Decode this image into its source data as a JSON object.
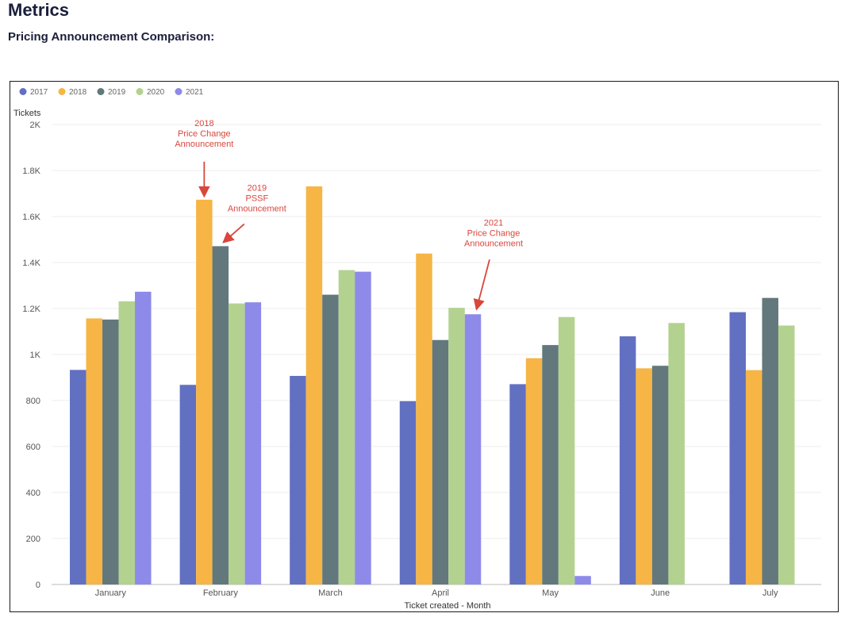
{
  "page": {
    "title": "Metrics",
    "subtitle": "Pricing Announcement Comparison:"
  },
  "chart_data": {
    "type": "bar",
    "categories": [
      "January",
      "February",
      "March",
      "April",
      "May",
      "June",
      "July"
    ],
    "series": [
      {
        "name": "2017",
        "color": "#6270c2",
        "values": [
          933,
          868,
          907,
          797,
          871,
          1079,
          1184
        ]
      },
      {
        "name": "2018",
        "color": "#f6b545",
        "values": [
          1157,
          1673,
          1731,
          1439,
          984,
          940,
          932
        ]
      },
      {
        "name": "2019",
        "color": "#62787c",
        "values": [
          1152,
          1471,
          1260,
          1063,
          1041,
          951,
          1246
        ]
      },
      {
        "name": "2020",
        "color": "#b3d28f",
        "values": [
          1231,
          1222,
          1367,
          1203,
          1163,
          1137,
          1126
        ]
      },
      {
        "name": "2021",
        "color": "#8e8ae9",
        "values": [
          1273,
          1227,
          1360,
          1175,
          37,
          null,
          null
        ]
      }
    ],
    "ylabel": "Tickets",
    "xlabel": "Ticket created - Month",
    "ylim": [
      0,
      2000
    ],
    "yticks": [
      0,
      200,
      400,
      600,
      800,
      1000,
      1200,
      1400,
      1600,
      1800,
      2000
    ],
    "ytick_labels": [
      "0",
      "200",
      "400",
      "600",
      "800",
      "1K",
      "1.2K",
      "1.4K",
      "1.6K",
      "1.8K",
      "2K"
    ],
    "grid": true,
    "legend_position": "top-left",
    "annotations": [
      {
        "lines": [
          "2018",
          "Price Change",
          "Announcement"
        ],
        "category": "February",
        "series": "2018",
        "color": "#d9463b"
      },
      {
        "lines": [
          "2019",
          "PSSF",
          "Announcement"
        ],
        "category": "February",
        "series": "2019",
        "color": "#d9463b"
      },
      {
        "lines": [
          "2021",
          "Price Change",
          "Announcement"
        ],
        "category": "April",
        "series": "2021",
        "color": "#d9463b"
      }
    ]
  }
}
